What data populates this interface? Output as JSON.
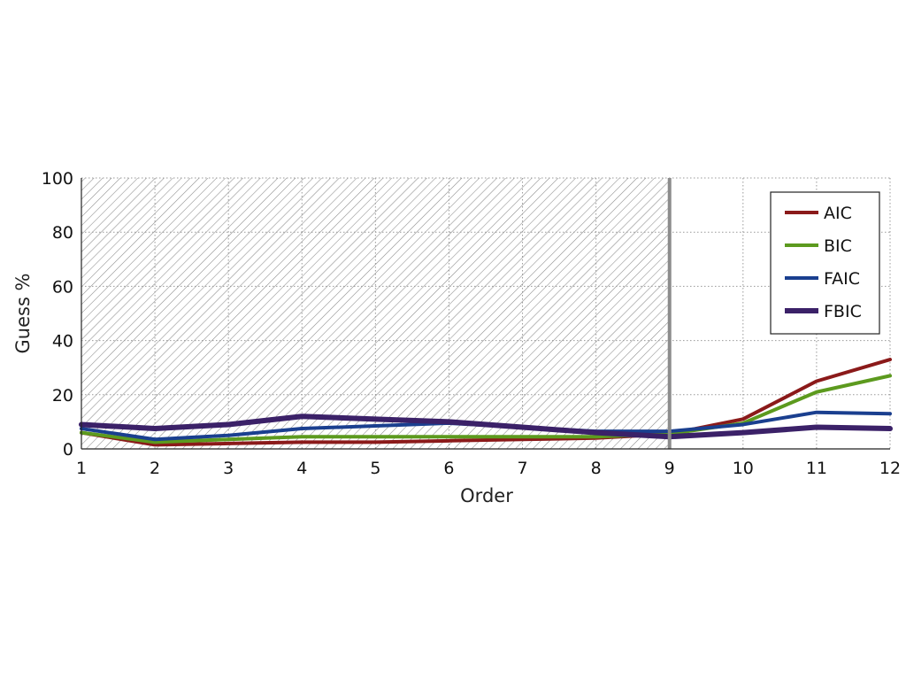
{
  "chart_data": {
    "type": "line",
    "xlabel": "Order",
    "ylabel": "Guess %",
    "xlim": [
      1,
      12
    ],
    "ylim": [
      0,
      100
    ],
    "x_ticks": [
      "1",
      "2",
      "3",
      "4",
      "5",
      "6",
      "7",
      "8",
      "9",
      "10",
      "11",
      "12"
    ],
    "y_ticks": [
      "0",
      "20",
      "40",
      "60",
      "80",
      "100"
    ],
    "grid": true,
    "legend_position": "top-right",
    "shaded_region": {
      "x_from": 1,
      "x_to": 9,
      "pattern": "hatched"
    },
    "vertical_marker_x": 9,
    "x": [
      1,
      2,
      3,
      4,
      5,
      6,
      7,
      8,
      9,
      10,
      11,
      12
    ],
    "series": [
      {
        "name": "AIC",
        "color": "#8b1a1a",
        "values": [
          6,
          1.5,
          2,
          2.5,
          2.5,
          3,
          3.5,
          4,
          5.5,
          11,
          25,
          33
        ]
      },
      {
        "name": "BIC",
        "color": "#5c9a1e",
        "values": [
          6,
          2.5,
          3.5,
          4.5,
          4.5,
          4.5,
          4.5,
          4.5,
          5.5,
          9.5,
          21,
          27
        ]
      },
      {
        "name": "FAIC",
        "color": "#1a3f8f",
        "values": [
          7.5,
          3.5,
          5,
          7.5,
          8.5,
          9.5,
          8,
          6.5,
          6.5,
          9,
          13.5,
          13
        ]
      },
      {
        "name": "FBIC",
        "color": "#3b2168",
        "values": [
          9,
          7.5,
          9,
          12,
          11,
          10,
          8,
          6,
          4.5,
          6,
          8,
          7.5
        ]
      }
    ]
  }
}
